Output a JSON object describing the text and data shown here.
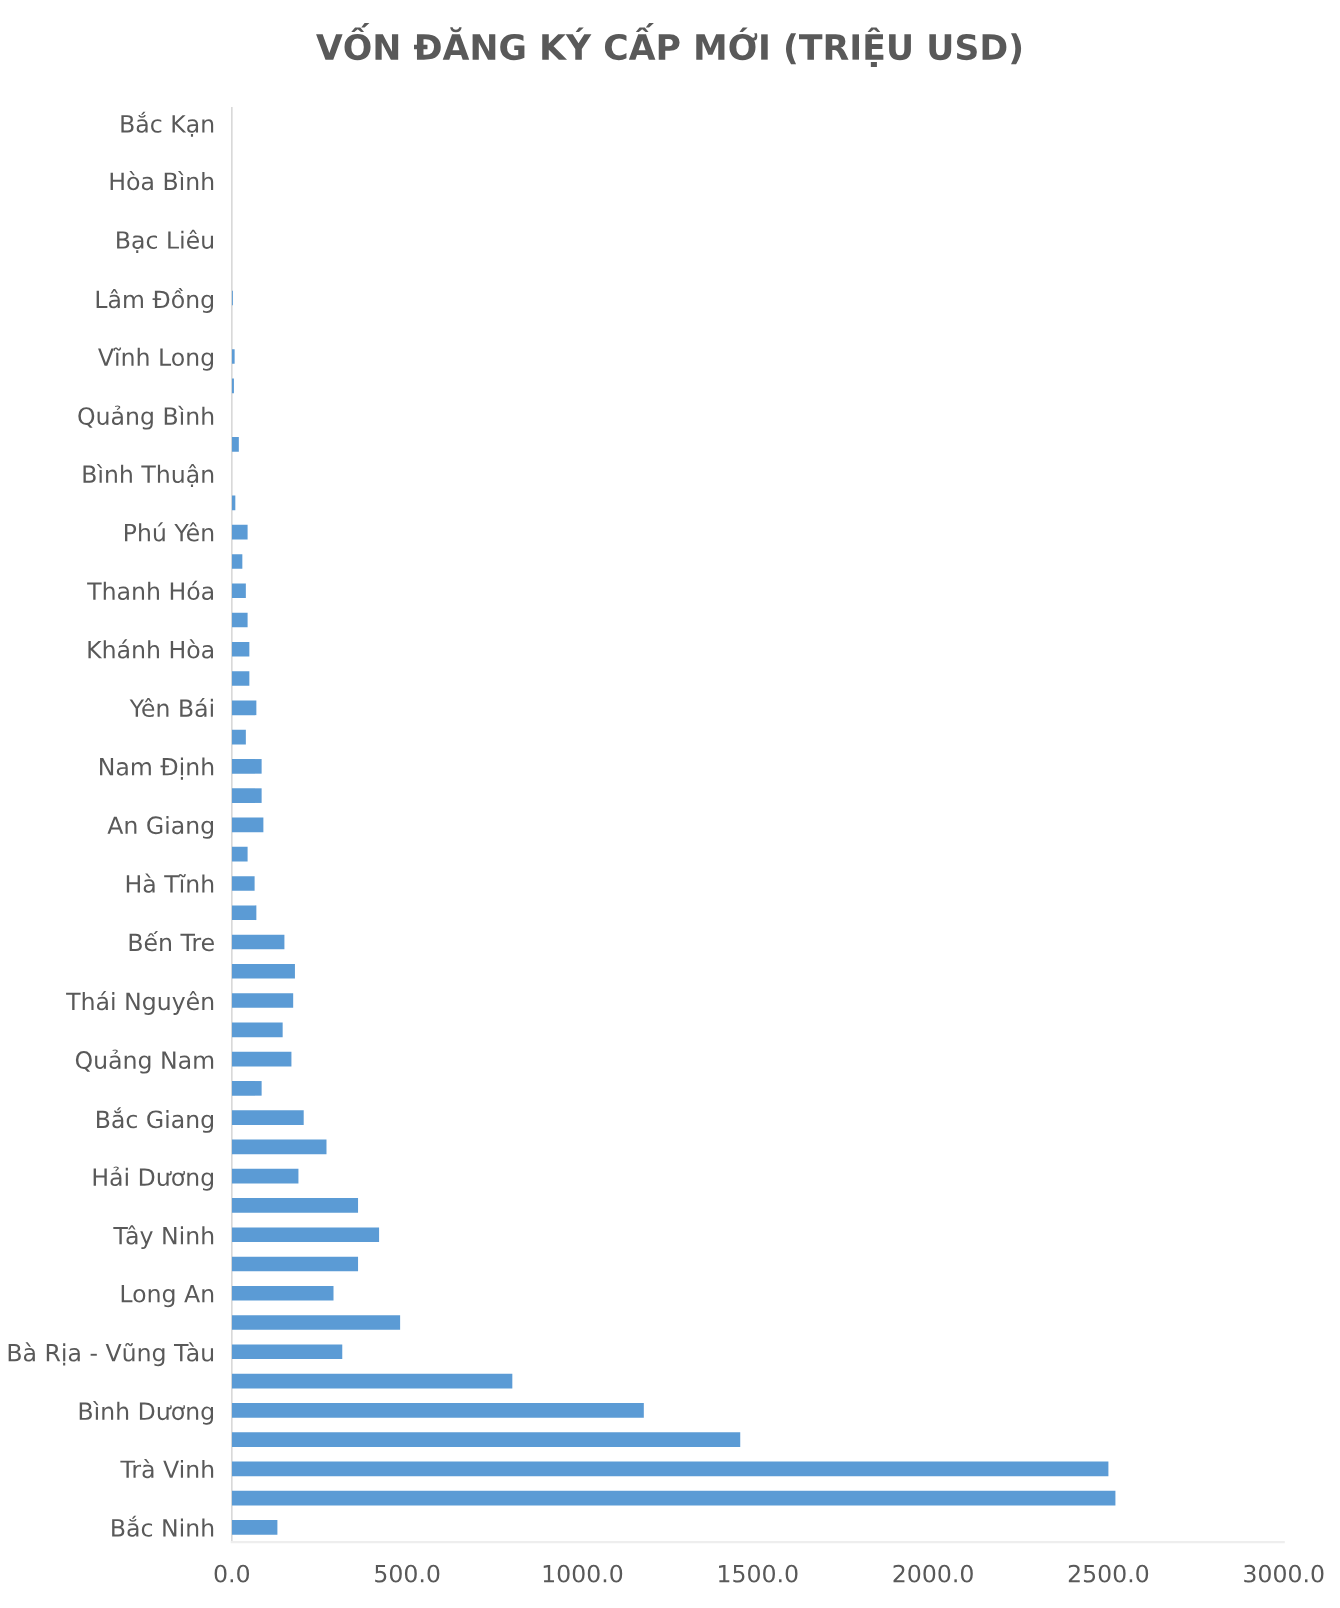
{
  "chart_data": {
    "type": "bar",
    "orientation": "horizontal",
    "title": "VỐN ĐĂNG KÝ CẤP MỚI (TRIỆU USD)",
    "categories": [
      "Bắc Kạn",
      null,
      "Hòa Bình",
      null,
      "Bạc Liêu",
      null,
      "Lâm Đồng",
      null,
      "Vĩnh Long",
      null,
      "Quảng Bình",
      null,
      "Bình Thuận",
      null,
      "Phú Yên",
      null,
      "Thanh Hóa",
      null,
      "Khánh Hòa",
      null,
      "Yên Bái",
      null,
      "Nam Định",
      null,
      "An Giang",
      null,
      "Hà Tĩnh",
      null,
      "Bến Tre",
      null,
      "Thái Nguyên",
      null,
      "Quảng Nam",
      null,
      "Bắc Giang",
      null,
      "Hải Dương",
      null,
      "Tây Ninh",
      null,
      "Long An",
      null,
      "Bà Rịa - Vũng Tàu",
      null,
      "Bình Dương",
      null,
      "Trà Vinh",
      null,
      "Bắc Ninh"
    ],
    "values": [
      0,
      0,
      0,
      0,
      0,
      0,
      3,
      0,
      8,
      6,
      0,
      20,
      0,
      10,
      45,
      30,
      40,
      45,
      50,
      50,
      70,
      40,
      85,
      85,
      90,
      45,
      65,
      70,
      150,
      180,
      175,
      145,
      170,
      85,
      205,
      270,
      190,
      360,
      420,
      360,
      290,
      480,
      315,
      800,
      1175,
      1450,
      2500,
      2520,
      130
    ],
    "color": "#5b9bd5",
    "xlim": [
      0,
      3000
    ],
    "xticks": [
      {
        "value": 0,
        "label": "0.0"
      },
      {
        "value": 500,
        "label": "500.0"
      },
      {
        "value": 1000,
        "label": "1000.0"
      },
      {
        "value": 1500,
        "label": "1500.0"
      },
      {
        "value": 2000,
        "label": "2000.0"
      },
      {
        "value": 2500,
        "label": "2500.0"
      },
      {
        "value": 3000,
        "label": "3000.0"
      }
    ],
    "grid": false
  }
}
